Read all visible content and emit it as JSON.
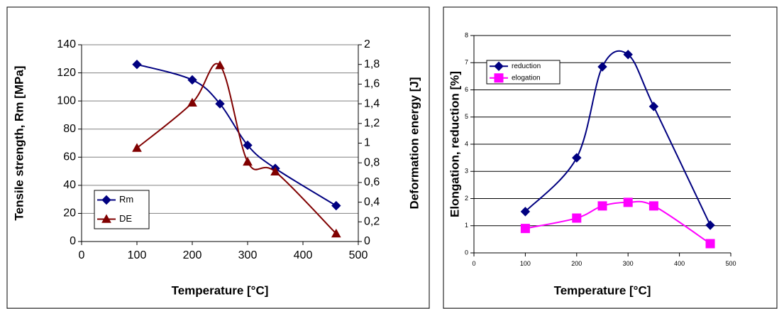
{
  "chart_data": [
    {
      "type": "line",
      "xlabel": "Temperature [°C]",
      "ylabel": "Tensile strength, Rm [MPa]",
      "y2label": "Deformation energy [J]",
      "x": [
        100,
        200,
        250,
        300,
        350,
        460
      ],
      "series": [
        {
          "name": "Rm",
          "color": "#000080",
          "marker": "diamond",
          "values": [
            126,
            115,
            98,
            68.5,
            52,
            25.5
          ]
        },
        {
          "name": "DE",
          "color": "#800000",
          "marker": "triangle",
          "axis": "y2",
          "values": [
            0.95,
            1.41,
            1.79,
            0.81,
            0.71,
            0.08
          ]
        }
      ],
      "xlim": [
        0,
        500
      ],
      "xticks": [
        0,
        100,
        200,
        300,
        400,
        500
      ],
      "ylim": [
        0,
        140
      ],
      "yticks": [
        0,
        20,
        40,
        60,
        80,
        100,
        120,
        140
      ],
      "y2lim": [
        0,
        2
      ],
      "y2ticks": [
        0,
        {
          "value": 0.2,
          "label": "0,2"
        },
        {
          "value": 0.4,
          "label": "0,4"
        },
        {
          "value": 0.6,
          "label": "0,6"
        },
        {
          "value": 0.8,
          "label": "0,8"
        },
        1,
        {
          "value": 1.2,
          "label": "1,2"
        },
        {
          "value": 1.4,
          "label": "1,4"
        },
        {
          "value": 1.6,
          "label": "1,6"
        },
        {
          "value": 1.8,
          "label": "1,8"
        },
        2
      ],
      "grid": true,
      "grid_color": "#808080",
      "smooth": true,
      "legend": "lower left"
    },
    {
      "type": "line",
      "xlabel": "Temperature [°C]",
      "ylabel": "Elongation, reduction [%]",
      "x": [
        100,
        200,
        250,
        300,
        350,
        460
      ],
      "series": [
        {
          "name": "reduction",
          "color": "#000080",
          "marker": "diamond",
          "values": [
            1.52,
            3.5,
            6.85,
            7.3,
            5.39,
            1.02
          ]
        },
        {
          "name": "elogation",
          "color": "#ff00ff",
          "marker": "square",
          "values": [
            0.9,
            1.28,
            1.73,
            1.86,
            1.73,
            0.34
          ]
        }
      ],
      "xlim": [
        0,
        500
      ],
      "xticks": [
        0,
        100,
        200,
        300,
        400,
        500
      ],
      "ylim": [
        0,
        8
      ],
      "yticks": [
        0,
        1,
        2,
        3,
        4,
        5,
        6,
        7,
        8
      ],
      "grid": true,
      "grid_color": "#000000",
      "smooth": true,
      "legend": "upper left"
    }
  ]
}
